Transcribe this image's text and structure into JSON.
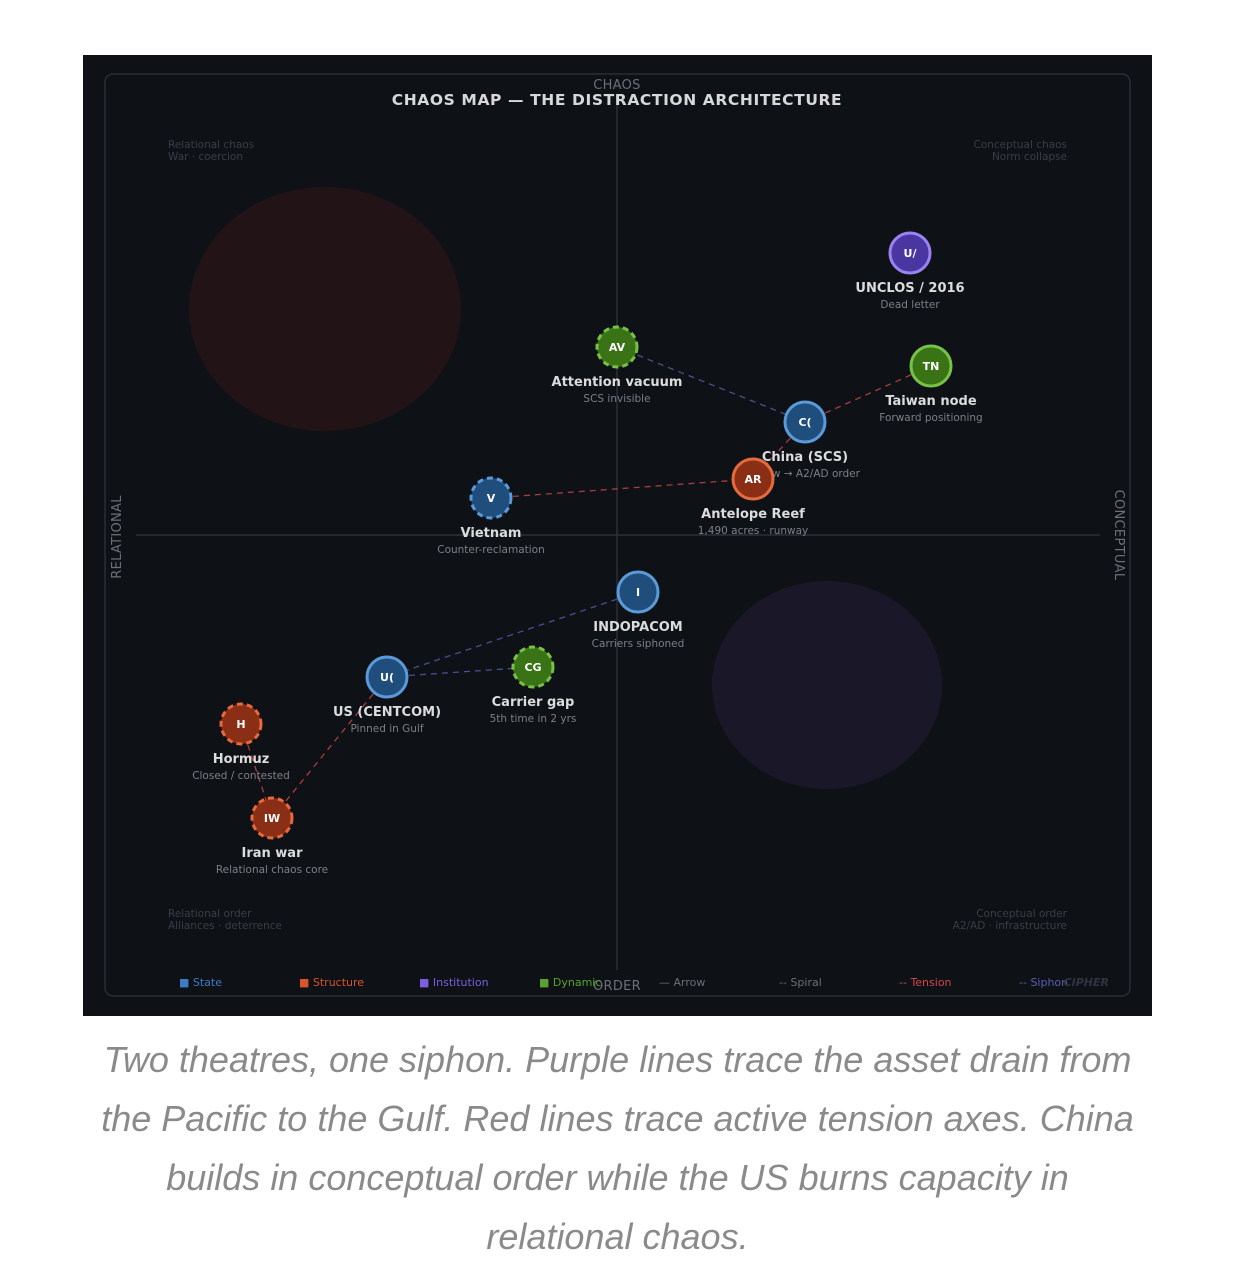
{
  "title": "CHAOS MAP — THE DISTRACTION ARCHITECTURE",
  "axes": {
    "top": "CHAOS",
    "bottom": "ORDER",
    "left": "RELATIONAL",
    "right": "CONCEPTUAL"
  },
  "quadrants": {
    "top_left": [
      "Relational chaos",
      "War · coercion"
    ],
    "top_right": [
      "Conceptual chaos",
      "Norm collapse"
    ],
    "bottom_left": [
      "Relational order",
      "Alliances · deterrence"
    ],
    "bottom_right": [
      "Conceptual order",
      "A2/AD · infrastructure"
    ]
  },
  "colors": {
    "State": "#3d7cc4",
    "Structure": "#d9532b",
    "Institution": "#7b5fe0",
    "Dynamic": "#5aa22f",
    "Tension": "#d04848",
    "Siphon": "#5a5fb0"
  },
  "nodes": [
    {
      "id": "unclos",
      "code": "U/",
      "label": "UNCLOS / 2016",
      "sub": "Dead letter",
      "type": "Institution",
      "dashed": false
    },
    {
      "id": "attention",
      "code": "AV",
      "label": "Attention vacuum",
      "sub": "SCS invisible",
      "type": "Dynamic",
      "dashed": true
    },
    {
      "id": "taiwan",
      "code": "TN",
      "label": "Taiwan node",
      "sub": "Forward positioning",
      "type": "Dynamic",
      "dashed": false
    },
    {
      "id": "china",
      "code": "C(",
      "label": "China (SCS)",
      "sub": "Arrow → A2/AD order",
      "type": "State",
      "dashed": false
    },
    {
      "id": "antelope",
      "code": "AR",
      "label": "Antelope Reef",
      "sub": "1,490 acres · runway",
      "type": "Structure",
      "dashed": false
    },
    {
      "id": "vietnam",
      "code": "V",
      "label": "Vietnam",
      "sub": "Counter-reclamation",
      "type": "State",
      "dashed": true
    },
    {
      "id": "indopacom",
      "code": "I",
      "label": "INDOPACOM",
      "sub": "Carriers siphoned",
      "type": "State",
      "dashed": false
    },
    {
      "id": "carrier",
      "code": "CG",
      "label": "Carrier gap",
      "sub": "5th time in 2 yrs",
      "type": "Dynamic",
      "dashed": true
    },
    {
      "id": "us",
      "code": "U(",
      "label": "US (CENTCOM)",
      "sub": "Pinned in Gulf",
      "type": "State",
      "dashed": false
    },
    {
      "id": "hormuz",
      "code": "H",
      "label": "Hormuz",
      "sub": "Closed / contested",
      "type": "Structure",
      "dashed": true
    },
    {
      "id": "iran",
      "code": "IW",
      "label": "Iran war",
      "sub": "Relational chaos core",
      "type": "Structure",
      "dashed": true
    }
  ],
  "edges": [
    {
      "from": "attention",
      "to": "china",
      "kind": "Siphon"
    },
    {
      "from": "china",
      "to": "taiwan",
      "kind": "Tension"
    },
    {
      "from": "china",
      "to": "antelope",
      "kind": "Tension"
    },
    {
      "from": "vietnam",
      "to": "antelope",
      "kind": "Tension"
    },
    {
      "from": "indopacom",
      "to": "us",
      "kind": "Siphon"
    },
    {
      "from": "us",
      "to": "carrier",
      "kind": "Siphon"
    },
    {
      "from": "us",
      "to": "iran",
      "kind": "Tension"
    },
    {
      "from": "hormuz",
      "to": "iran",
      "kind": "Tension"
    }
  ],
  "legend": [
    {
      "label": "State",
      "symbol": "■",
      "color": "#3d7cc4"
    },
    {
      "label": "Structure",
      "symbol": "■",
      "color": "#d9532b"
    },
    {
      "label": "Institution",
      "symbol": "■",
      "color": "#7b5fe0"
    },
    {
      "label": "Dynamic",
      "symbol": "■",
      "color": "#5aa22f"
    },
    {
      "label": "Arrow",
      "symbol": "—",
      "color": "#6b6f78"
    },
    {
      "label": "Spiral",
      "symbol": "--",
      "color": "#6b6f78"
    },
    {
      "label": "Tension",
      "symbol": "--",
      "color": "#d04848"
    },
    {
      "label": "Siphon",
      "symbol": "--",
      "color": "#5a5fb0"
    }
  ],
  "watermark": "CIPHER",
  "caption": "Two theatres, one siphon. Purple lines trace the asset drain from the Pacific to the Gulf. Red lines trace active tension axes. China builds in conceptual order while the US burns capacity in relational chaos."
}
